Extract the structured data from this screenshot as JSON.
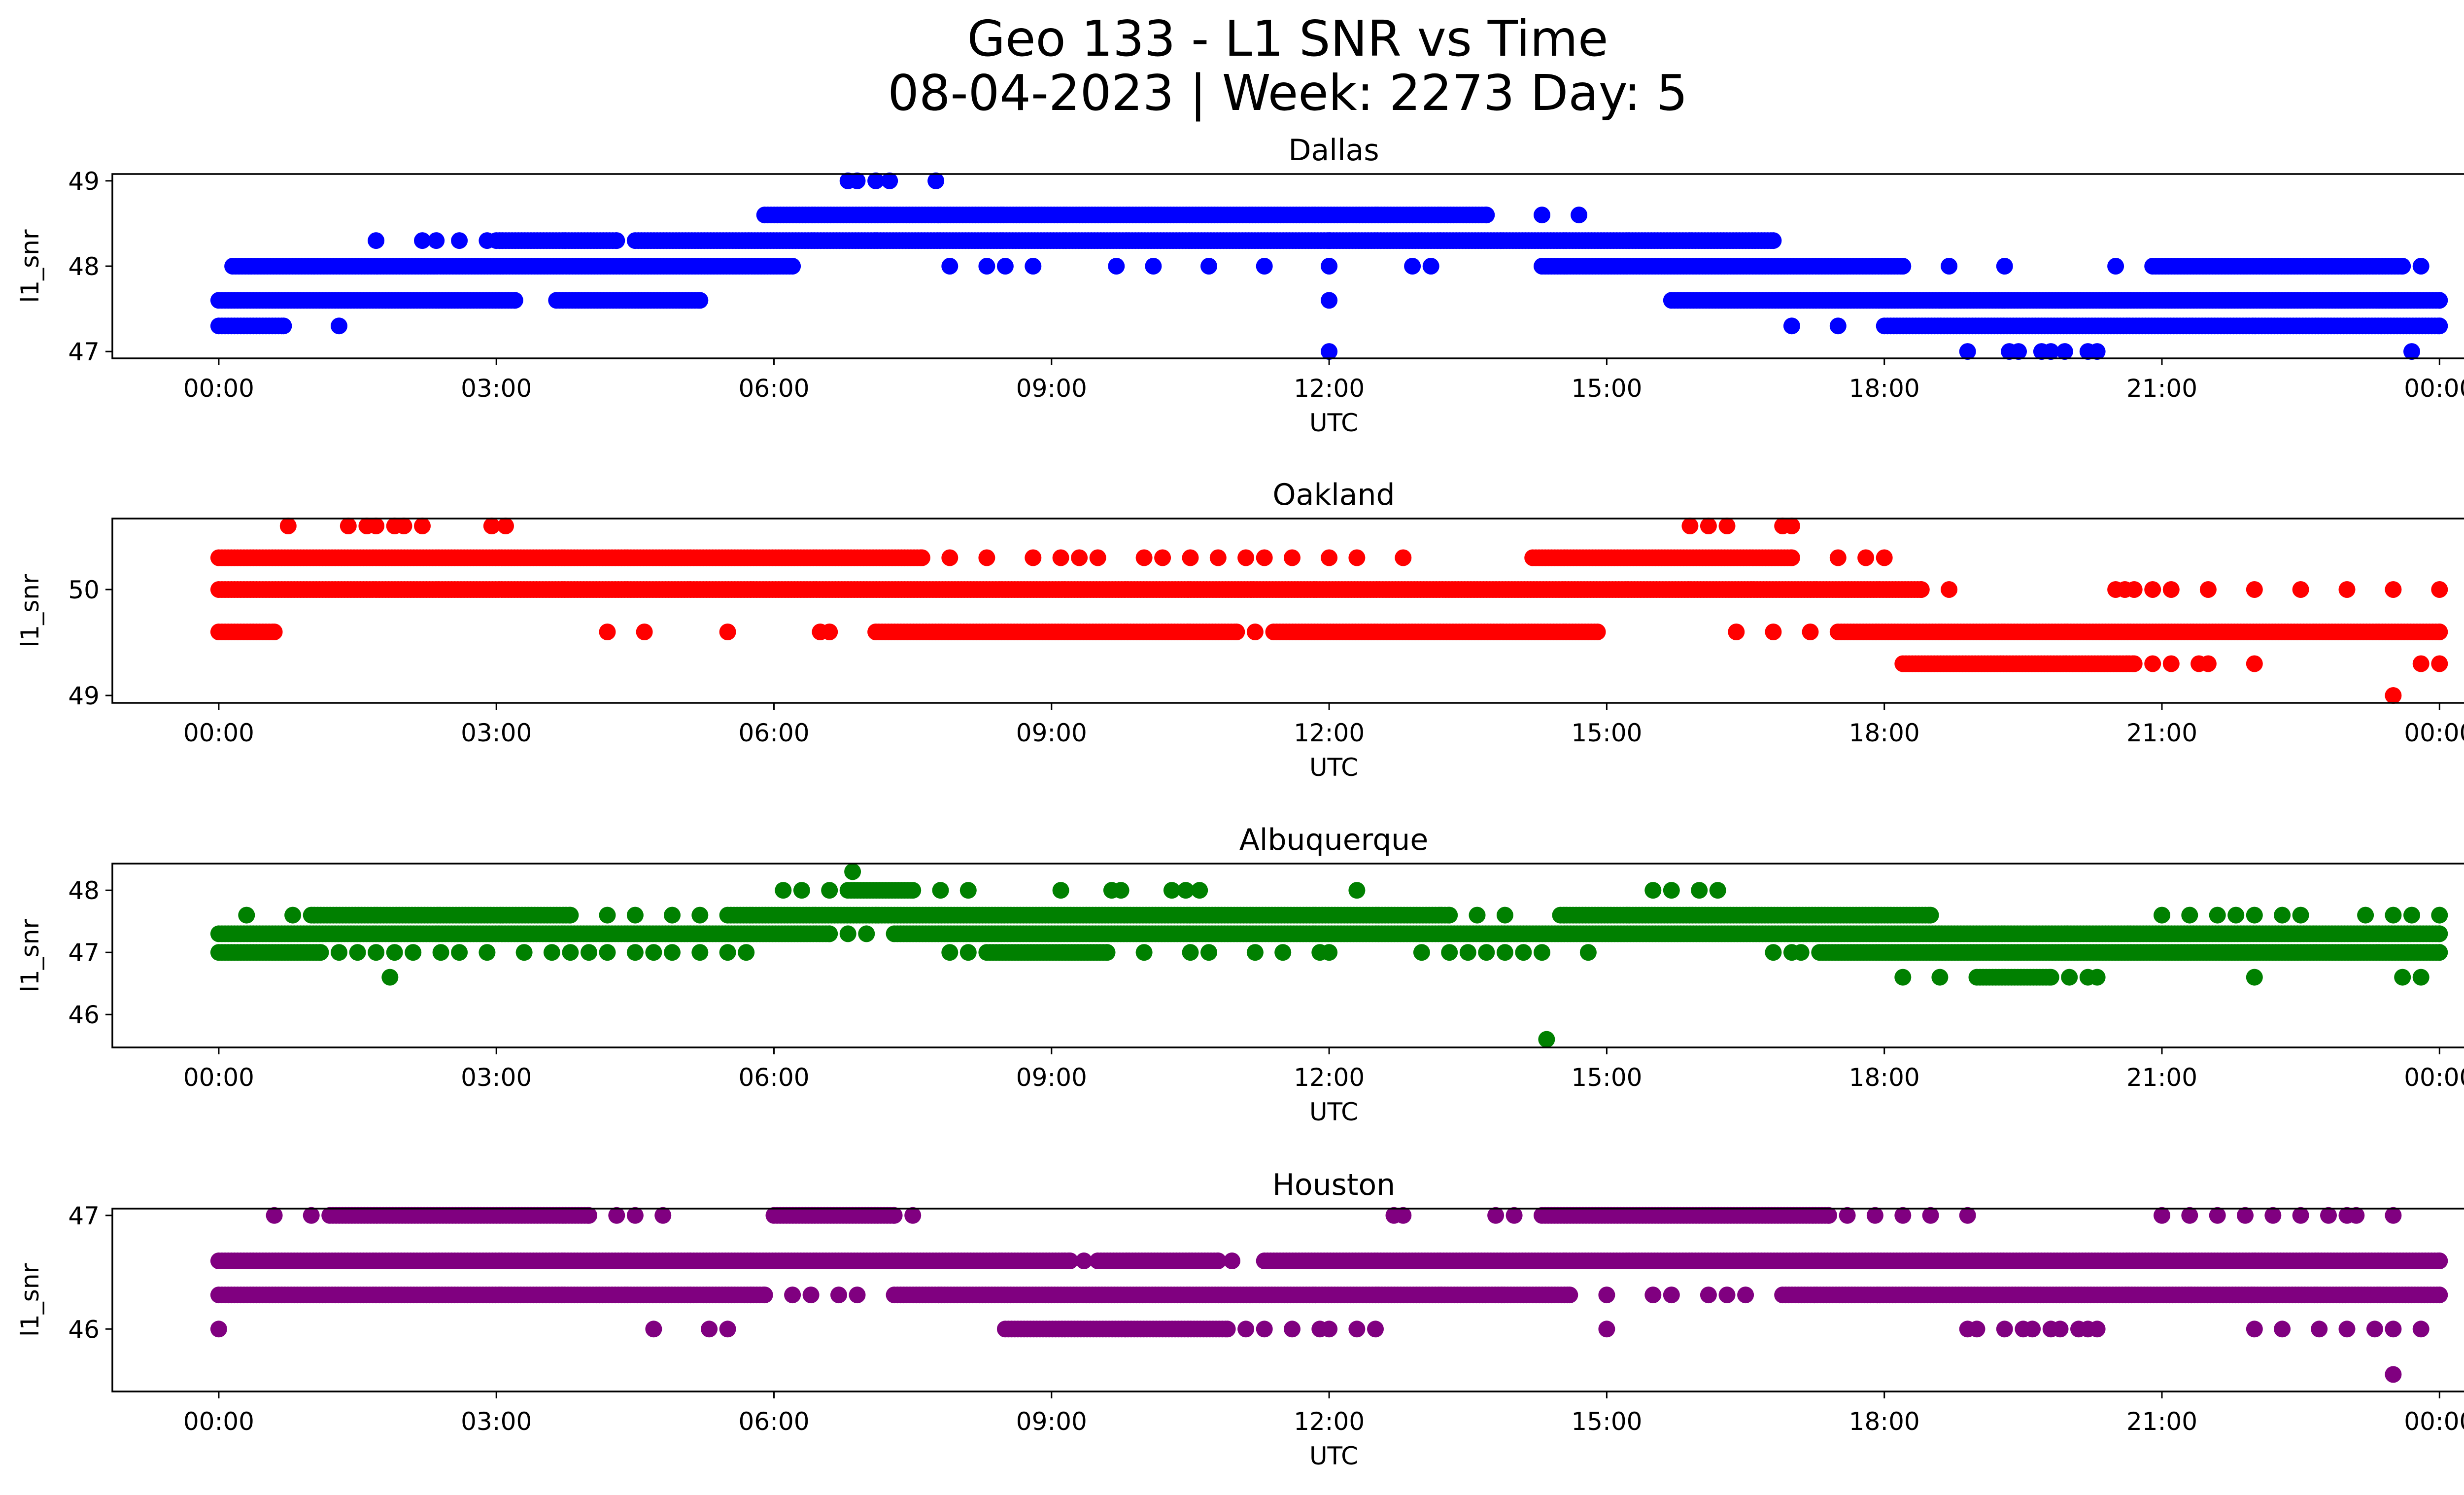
{
  "figure": {
    "title_line1": "Geo 133 - L1 SNR vs Time",
    "title_line2": "08-04-2023 | Week: 2273 Day: 5"
  },
  "chart_data": [
    {
      "type": "scatter",
      "title": "Dallas",
      "xlabel": "UTC",
      "ylabel": "l1_snr",
      "color": "#0000ff",
      "xticks": [
        "00:00",
        "03:00",
        "06:00",
        "09:00",
        "12:00",
        "15:00",
        "18:00",
        "21:00",
        "00:00"
      ],
      "yticks": [
        47,
        48,
        49
      ],
      "xlim": [
        -1.15,
        25.25
      ],
      "ylim": [
        46.92,
        49.08
      ],
      "levels": [
        {
          "y": 47.3,
          "segments": [
            [
              0.0,
              0.7
            ],
            [
              18.0,
              24.0
            ]
          ],
          "points": [
            1.3,
            17.0,
            17.5
          ]
        },
        {
          "y": 47.6,
          "segments": [
            [
              0.0,
              3.2
            ],
            [
              3.65,
              5.2
            ],
            [
              15.7,
              24.0
            ]
          ],
          "points": [
            12.0
          ]
        },
        {
          "y": 48.0,
          "segments": [
            [
              0.15,
              6.2
            ],
            [
              14.3,
              18.2
            ],
            [
              20.9,
              23.6
            ]
          ],
          "points": [
            7.9,
            8.3,
            8.5,
            8.8,
            9.7,
            10.1,
            10.7,
            11.3,
            12.0,
            12.9,
            13.1,
            18.7,
            19.3,
            20.5,
            23.8
          ]
        },
        {
          "y": 48.3,
          "segments": [
            [
              3.0,
              4.3
            ],
            [
              4.5,
              16.8
            ]
          ],
          "points": [
            1.7,
            2.2,
            2.35,
            2.6,
            2.9,
            12.0
          ]
        },
        {
          "y": 48.6,
          "segments": [
            [
              5.9,
              13.7
            ]
          ],
          "points": [
            14.3,
            14.7
          ]
        },
        {
          "y": 49.0,
          "segments": [],
          "points": [
            6.8,
            6.9,
            7.1,
            7.25,
            7.75
          ]
        },
        {
          "y": 47.0,
          "segments": [],
          "points": [
            12.0,
            18.9,
            19.35,
            19.45,
            19.7,
            19.8,
            19.95,
            20.2,
            20.3,
            23.7
          ]
        }
      ]
    },
    {
      "type": "scatter",
      "title": "Oakland",
      "xlabel": "UTC",
      "ylabel": "l1_snr",
      "color": "#ff0000",
      "xticks": [
        "00:00",
        "03:00",
        "06:00",
        "09:00",
        "12:00",
        "15:00",
        "18:00",
        "21:00",
        "00:00"
      ],
      "yticks": [
        49,
        50
      ],
      "xlim": [
        -1.15,
        25.25
      ],
      "ylim": [
        48.93,
        50.67
      ],
      "levels": [
        {
          "y": 49.0,
          "segments": [],
          "points": [
            23.5
          ]
        },
        {
          "y": 49.3,
          "segments": [
            [
              18.2,
              20.7
            ]
          ],
          "points": [
            20.9,
            21.1,
            21.4,
            21.5,
            22.0,
            23.8,
            24.0
          ]
        },
        {
          "y": 49.6,
          "segments": [
            [
              0.0,
              0.6
            ],
            [
              7.1,
              11.0
            ],
            [
              11.4,
              14.9
            ],
            [
              17.5,
              24.0
            ]
          ],
          "points": [
            4.2,
            4.6,
            5.5,
            6.5,
            6.6,
            11.2,
            16.4,
            16.8,
            17.2
          ]
        },
        {
          "y": 50.0,
          "segments": [
            [
              0.0,
              18.4
            ]
          ],
          "points": [
            18.7,
            20.5,
            20.6,
            20.7,
            20.9,
            21.1,
            21.5,
            22.0,
            22.5,
            23.0,
            23.5,
            24.0
          ]
        },
        {
          "y": 50.3,
          "segments": [
            [
              0.0,
              7.6
            ],
            [
              14.2,
              17.0
            ]
          ],
          "points": [
            7.9,
            8.3,
            8.8,
            9.1,
            9.3,
            9.5,
            10.0,
            10.2,
            10.5,
            10.8,
            11.1,
            11.3,
            11.6,
            12.0,
            12.3,
            12.8,
            17.5,
            17.8,
            18.0
          ]
        },
        {
          "y": 50.6,
          "segments": [],
          "points": [
            0.75,
            1.4,
            1.6,
            1.7,
            1.9,
            2.0,
            2.2,
            2.95,
            3.1,
            15.9,
            16.1,
            16.3,
            16.9,
            17.0
          ]
        }
      ]
    },
    {
      "type": "scatter",
      "title": "Albuquerque",
      "xlabel": "UTC",
      "ylabel": "l1_snr",
      "color": "#008000",
      "xticks": [
        "00:00",
        "03:00",
        "06:00",
        "09:00",
        "12:00",
        "15:00",
        "18:00",
        "21:00",
        "00:00"
      ],
      "yticks": [
        46,
        47,
        48
      ],
      "xlim": [
        -1.15,
        25.25
      ],
      "ylim": [
        45.47,
        48.43
      ],
      "levels": [
        {
          "y": 45.6,
          "segments": [],
          "points": [
            14.35
          ]
        },
        {
          "y": 46.6,
          "segments": [
            [
              19.0,
              19.8
            ]
          ],
          "points": [
            1.85,
            18.2,
            18.6,
            20.0,
            20.2,
            20.3,
            22.0,
            23.6,
            23.8
          ]
        },
        {
          "y": 47.0,
          "segments": [
            [
              0.0,
              1.1
            ],
            [
              8.3,
              9.6
            ],
            [
              17.3,
              24.0
            ]
          ],
          "points": [
            1.3,
            1.5,
            1.7,
            1.9,
            2.1,
            2.4,
            2.6,
            2.9,
            3.3,
            3.6,
            3.8,
            4.0,
            4.2,
            4.5,
            4.7,
            4.9,
            5.2,
            5.5,
            5.7,
            7.9,
            8.1,
            10.0,
            10.5,
            10.7,
            11.2,
            11.5,
            11.9,
            12.0,
            13.0,
            13.3,
            13.5,
            13.7,
            13.9,
            14.1,
            14.3,
            14.8,
            16.8,
            17.0,
            17.1
          ]
        },
        {
          "y": 47.3,
          "segments": [
            [
              0.0,
              6.6
            ],
            [
              7.3,
              24.0
            ]
          ],
          "points": [
            6.8,
            7.0
          ]
        },
        {
          "y": 47.6,
          "segments": [
            [
              1.0,
              3.8
            ],
            [
              5.5,
              13.3
            ],
            [
              14.5,
              18.5
            ]
          ],
          "points": [
            0.3,
            0.8,
            4.2,
            4.5,
            4.9,
            5.2,
            13.6,
            13.9,
            21.0,
            21.3,
            21.6,
            21.8,
            22.0,
            22.3,
            22.5,
            23.2,
            23.5,
            23.7,
            24.0
          ]
        },
        {
          "y": 48.0,
          "segments": [
            [
              6.8,
              7.5
            ]
          ],
          "points": [
            6.1,
            6.3,
            6.6,
            7.8,
            8.1,
            9.1,
            9.65,
            9.75,
            10.3,
            10.45,
            10.6,
            12.3,
            15.5,
            15.7,
            16.0,
            16.2
          ]
        },
        {
          "y": 48.3,
          "segments": [],
          "points": [
            6.85
          ]
        }
      ]
    },
    {
      "type": "scatter",
      "title": "Houston",
      "xlabel": "UTC",
      "ylabel": "l1_snr",
      "color": "#800080",
      "xticks": [
        "00:00",
        "03:00",
        "06:00",
        "09:00",
        "12:00",
        "15:00",
        "18:00",
        "21:00",
        "00:00"
      ],
      "yticks": [
        46,
        47
      ],
      "xlim": [
        -1.15,
        25.25
      ],
      "ylim": [
        45.45,
        47.06
      ],
      "levels": [
        {
          "y": 45.6,
          "segments": [],
          "points": [
            23.5
          ]
        },
        {
          "y": 46.0,
          "segments": [
            [
              8.5,
              10.9
            ]
          ],
          "points": [
            0.0,
            4.7,
            5.3,
            5.5,
            11.1,
            11.3,
            11.6,
            11.9,
            12.0,
            12.3,
            12.5,
            15.0,
            18.9,
            19.0,
            19.3,
            19.5,
            19.6,
            19.8,
            19.9,
            20.1,
            20.2,
            20.3,
            22.0,
            22.3,
            22.7,
            23.0,
            23.3,
            23.5,
            23.8
          ]
        },
        {
          "y": 46.3,
          "segments": [
            [
              0.0,
              5.9
            ],
            [
              7.3,
              14.6
            ],
            [
              16.9,
              24.0
            ]
          ],
          "points": [
            6.2,
            6.4,
            6.7,
            6.9,
            15.0,
            15.5,
            15.7,
            16.1,
            16.3,
            16.5
          ]
        },
        {
          "y": 46.6,
          "segments": [
            [
              0.0,
              9.2
            ],
            [
              9.5,
              10.8
            ],
            [
              11.3,
              24.0
            ]
          ],
          "points": [
            9.35,
            10.95
          ]
        },
        {
          "y": 47.0,
          "segments": [
            [
              1.2,
              4.0
            ],
            [
              6.0,
              7.3
            ],
            [
              14.3,
              17.4
            ]
          ],
          "points": [
            0.6,
            1.0,
            4.3,
            4.5,
            4.8,
            7.5,
            12.7,
            12.8,
            13.8,
            14.0,
            17.6,
            17.9,
            18.2,
            18.5,
            18.9,
            21.0,
            21.3,
            21.6,
            21.9,
            22.2,
            22.5,
            22.8,
            23.0,
            23.1,
            23.5
          ]
        }
      ]
    }
  ]
}
